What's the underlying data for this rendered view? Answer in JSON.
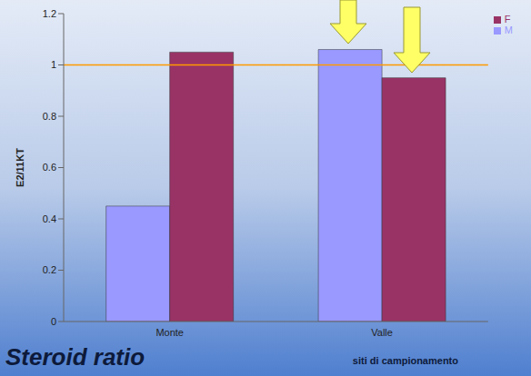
{
  "chart_data": {
    "type": "bar",
    "title": "Steroid ratio",
    "x_label": "siti di campionamento",
    "y_label": "E2/11KT",
    "categories": [
      "Monte",
      "Valle"
    ],
    "series": [
      {
        "name": "M",
        "color": "#9999ff",
        "values": [
          0.45,
          1.06
        ]
      },
      {
        "name": "F",
        "color": "#993366",
        "values": [
          1.05,
          0.95
        ]
      }
    ],
    "ylim": [
      0,
      1.2
    ],
    "yticks": [
      0,
      0.2,
      0.4,
      0.6,
      0.8,
      1,
      1.2
    ],
    "reference_line": 1,
    "grid": false,
    "legend": "upper right"
  }
}
